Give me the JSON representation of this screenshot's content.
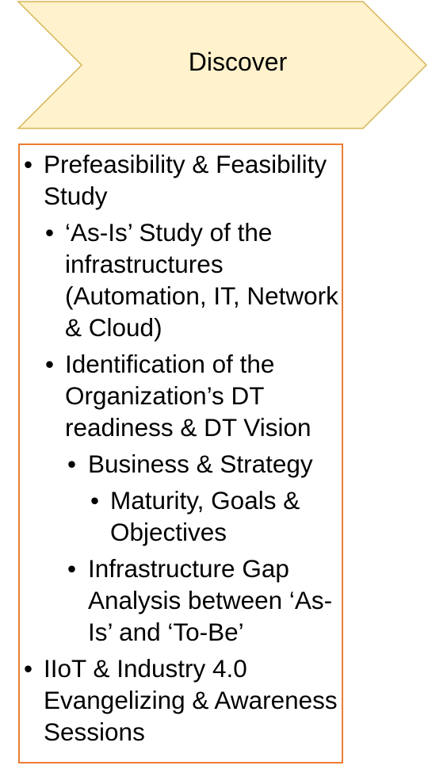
{
  "header": {
    "title": "Discover",
    "fill_color": "#FFF2CC",
    "stroke_color": "#D6B656"
  },
  "box": {
    "border_color": "#ED7D31"
  },
  "items": [
    {
      "level": 1,
      "text": "Prefeasibility & Feasibility Study"
    },
    {
      "level": 2,
      "text": "‘As-Is’ Study of the infrastructures (Automation, IT, Network & Cloud)"
    },
    {
      "level": 2,
      "text": "Identification of the Organization’s DT readiness & DT Vision"
    },
    {
      "level": 3,
      "text": "Business & Strategy"
    },
    {
      "level": 4,
      "text": "Maturity, Goals & Objectives"
    },
    {
      "level": 3,
      "text": "Infrastructure Gap Analysis between ‘As-Is’ and ‘To-Be’"
    },
    {
      "level": 1,
      "text": "IIoT & Industry 4.0 Evangelizing & Awareness Sessions"
    }
  ]
}
